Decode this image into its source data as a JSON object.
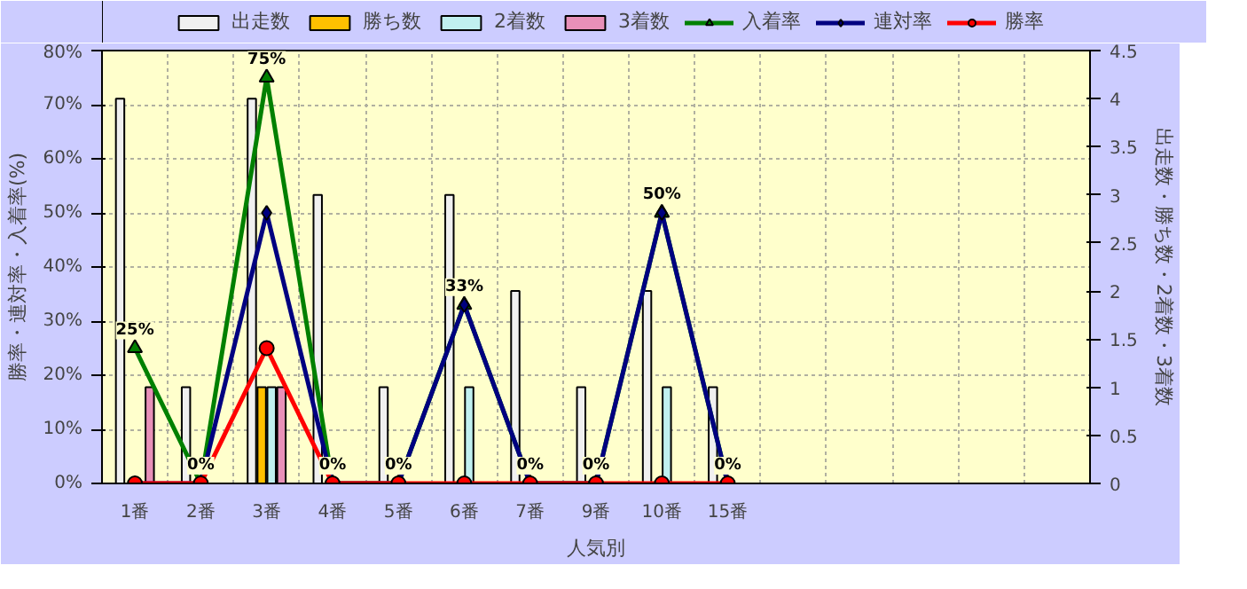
{
  "chart_data": {
    "type": "bar",
    "xlabel": "人気別",
    "ylabel": "勝率・連対率・入着率(%)",
    "y2label": "出走数・勝ち数・2着数・3着数",
    "categories": [
      "1番",
      "2番",
      "3番",
      "4番",
      "5番",
      "6番",
      "7番",
      "9番",
      "10番",
      "15番",
      null,
      null,
      null,
      null,
      null
    ],
    "series": [
      {
        "name": "出走数",
        "axis": "y2",
        "color": "#f0f0f0",
        "values": [
          4,
          1,
          4,
          3,
          1,
          3,
          2,
          1,
          2,
          1,
          null,
          null,
          null,
          null,
          null
        ]
      },
      {
        "name": "勝ち数",
        "axis": "y2",
        "color": "#ffc000",
        "values": [
          0,
          0,
          1,
          0,
          0,
          0,
          0,
          0,
          0,
          0,
          null,
          null,
          null,
          null,
          null
        ]
      },
      {
        "name": "2着数",
        "axis": "y2",
        "color": "#c0f0f0",
        "values": [
          0,
          0,
          1,
          0,
          0,
          1,
          0,
          0,
          1,
          0,
          null,
          null,
          null,
          null,
          null
        ]
      },
      {
        "name": "3着数",
        "axis": "y2",
        "color": "#e890b8",
        "values": [
          1,
          0,
          1,
          0,
          0,
          0,
          0,
          0,
          0,
          0,
          null,
          null,
          null,
          null,
          null
        ]
      },
      {
        "name": "入着率",
        "type": "line",
        "marker": "triangle",
        "color": "#008000",
        "values": [
          25,
          0,
          75,
          0,
          0,
          33,
          0,
          0,
          50,
          0,
          null,
          null,
          null,
          null,
          null
        ],
        "value_labels": [
          "25%",
          "0%",
          "75%",
          "0%",
          "0%",
          "33%",
          "0%",
          "0%",
          "50%",
          "0%",
          null,
          null,
          null,
          null,
          null
        ]
      },
      {
        "name": "連対率",
        "type": "line",
        "marker": "diamond",
        "color": "#000080",
        "values": [
          0,
          0,
          50,
          0,
          0,
          33,
          0,
          0,
          50,
          0,
          null,
          null,
          null,
          null,
          null
        ]
      },
      {
        "name": "勝率",
        "type": "line",
        "marker": "circle",
        "color": "#ff0000",
        "values": [
          0,
          0,
          25,
          0,
          0,
          0,
          0,
          0,
          0,
          0,
          null,
          null,
          null,
          null,
          null
        ]
      }
    ],
    "ylim": [
      0,
      80
    ],
    "yticks": [
      {
        "value": 0,
        "label": "0%"
      },
      {
        "value": 10,
        "label": "10%"
      },
      {
        "value": 20,
        "label": "20%"
      },
      {
        "value": 30,
        "label": "30%"
      },
      {
        "value": 40,
        "label": "40%"
      },
      {
        "value": 50,
        "label": "50%"
      },
      {
        "value": 60,
        "label": "60%"
      },
      {
        "value": 70,
        "label": "70%"
      },
      {
        "value": 80,
        "label": "80%"
      }
    ],
    "y2lim": [
      0,
      4.5
    ],
    "y2ticks": [
      0,
      0.5,
      1,
      1.5,
      2,
      2.5,
      3,
      3.5,
      4,
      4.5
    ],
    "grid": true,
    "legend": "top"
  }
}
